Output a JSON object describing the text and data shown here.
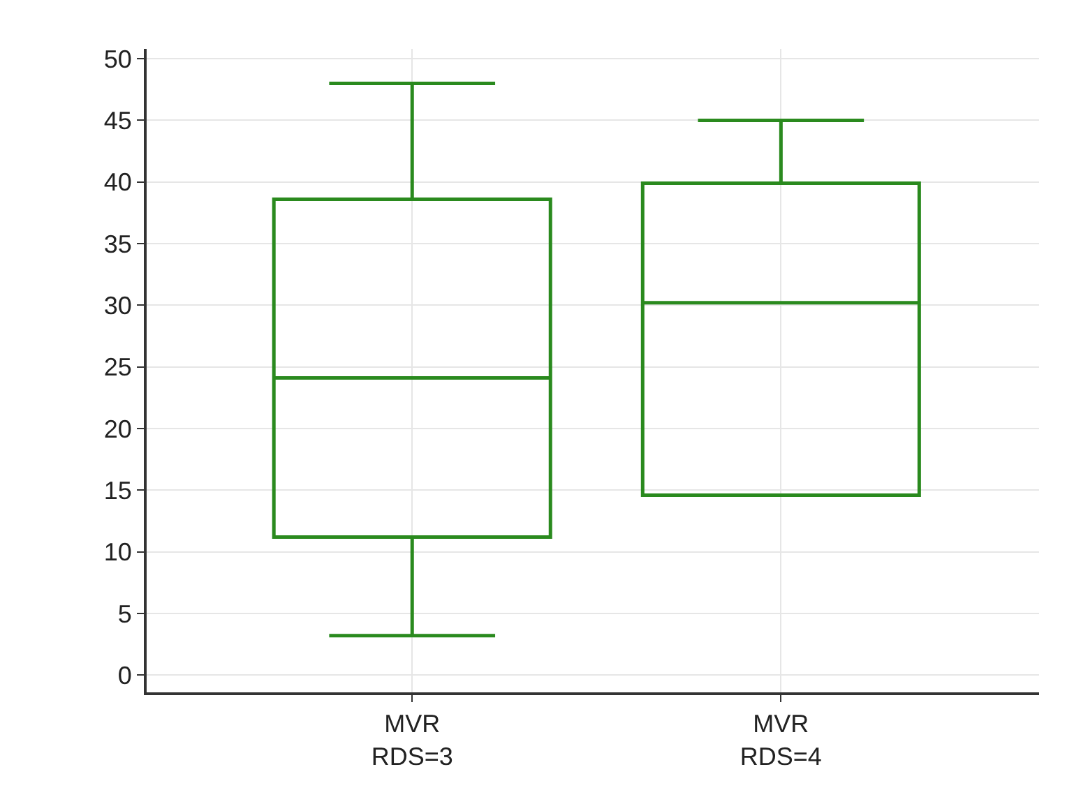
{
  "chart_data": {
    "type": "box",
    "categories": [
      "MVR\nRDS=3",
      "MVR\nRDS=4"
    ],
    "boxes": [
      {
        "low": 3.2,
        "q1": 11.2,
        "median": 24.1,
        "q3": 38.6,
        "high": 48.0
      },
      {
        "low": 14.6,
        "q1": 14.6,
        "median": 30.2,
        "q3": 39.9,
        "high": 45.0
      }
    ],
    "color": "#2a8a1e",
    "ylim": [
      -1.4,
      50.8
    ],
    "yticks": [
      0,
      5,
      10,
      15,
      20,
      25,
      30,
      35,
      40,
      45,
      50
    ],
    "grid": true
  }
}
